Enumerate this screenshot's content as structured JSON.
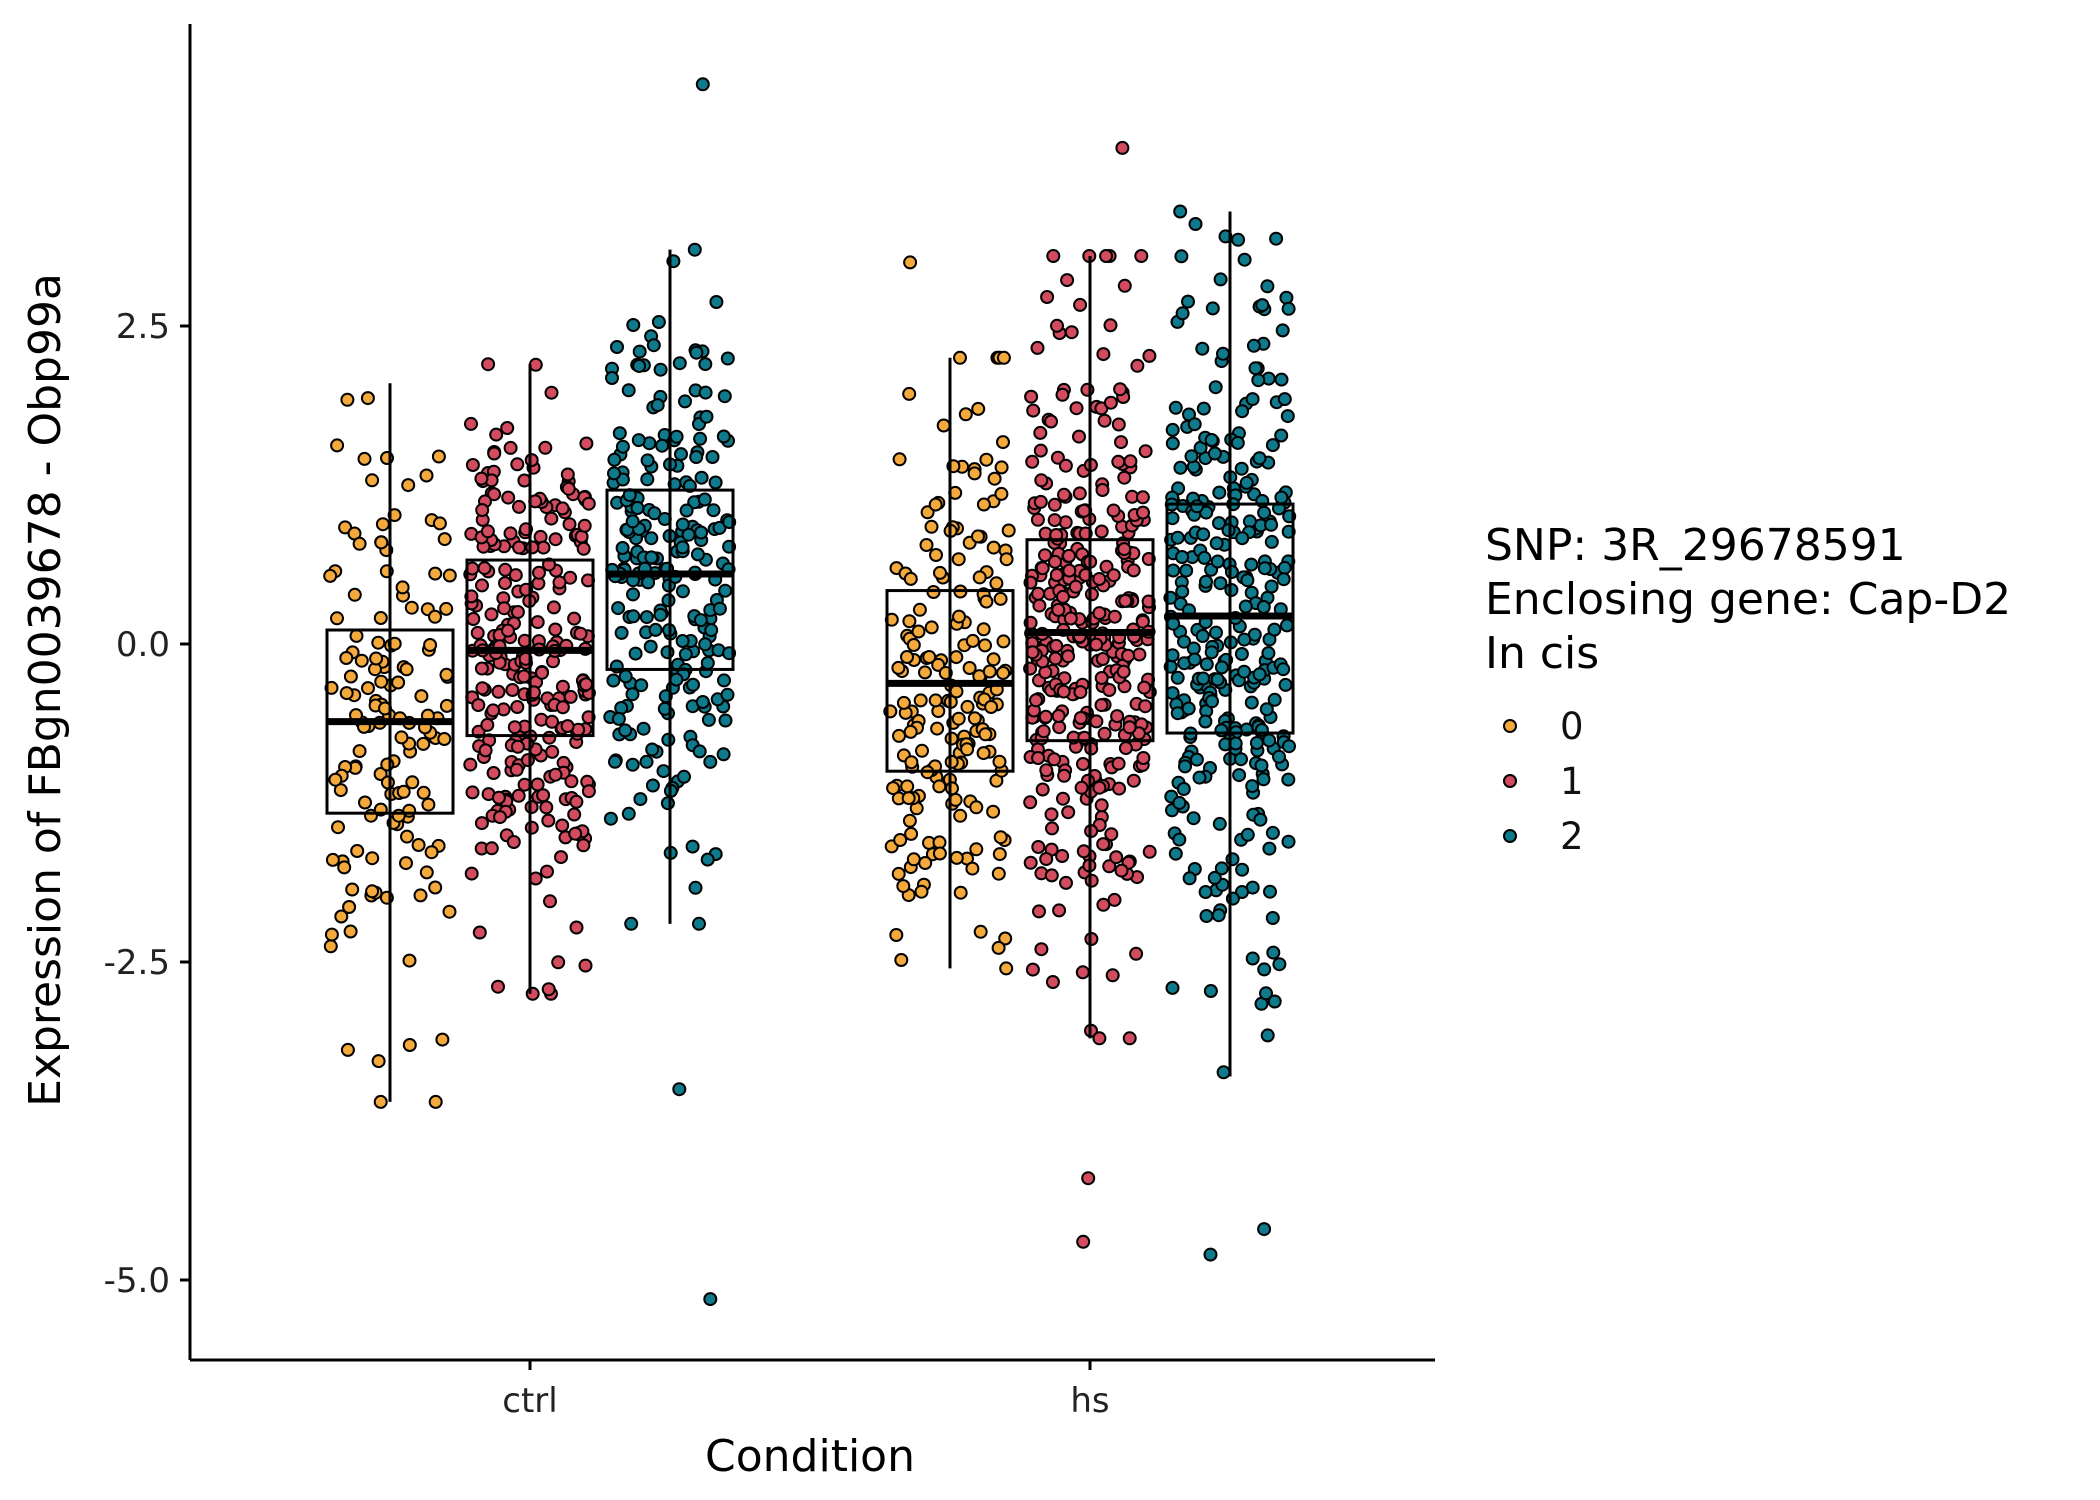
{
  "chart_data": {
    "type": "box",
    "xlabel": "Condition",
    "ylabel": "Expression of FBgn0039678 - Obp99a",
    "categories": [
      "ctrl",
      "hs"
    ],
    "ylim": [
      -5.6,
      4.9
    ],
    "yticks": [
      -5.0,
      -2.5,
      0.0,
      2.5
    ],
    "ytick_labels": [
      "-5.0",
      "-2.5",
      "0.0",
      "2.5"
    ],
    "grid": false,
    "legend": {
      "title_lines": [
        "SNP: 3R_29678591",
        "Enclosing gene: Cap-D2",
        "In cis"
      ],
      "position": "right",
      "entries": [
        {
          "label": "0",
          "color": "#F4A93C"
        },
        {
          "label": "1",
          "color": "#D24B5E"
        },
        {
          "label": "2",
          "color": "#0E7A8C"
        }
      ]
    },
    "boxes": [
      {
        "condition": "ctrl",
        "genotype": "0",
        "n": 140,
        "q1": -1.33,
        "median": -0.61,
        "q3": 0.11,
        "whisker_low": -3.6,
        "whisker_high": 2.05,
        "outliers": []
      },
      {
        "condition": "ctrl",
        "genotype": "1",
        "n": 280,
        "q1": -0.72,
        "median": -0.05,
        "q3": 0.66,
        "whisker_low": -2.75,
        "whisker_high": 2.2,
        "outliers": []
      },
      {
        "condition": "ctrl",
        "genotype": "2",
        "n": 240,
        "q1": -0.2,
        "median": 0.55,
        "q3": 1.21,
        "whisker_low": -2.2,
        "whisker_high": 3.1,
        "outliers": [
          4.4,
          -5.15,
          -3.5
        ]
      },
      {
        "condition": "hs",
        "genotype": "0",
        "n": 190,
        "q1": -1.0,
        "median": -0.31,
        "q3": 0.42,
        "whisker_low": -2.55,
        "whisker_high": 2.25,
        "outliers": [
          3.0
        ]
      },
      {
        "condition": "hs",
        "genotype": "1",
        "n": 360,
        "q1": -0.76,
        "median": 0.09,
        "q3": 0.82,
        "whisker_low": -3.1,
        "whisker_high": 3.05,
        "outliers": [
          3.9,
          -4.2,
          -4.7
        ]
      },
      {
        "condition": "hs",
        "genotype": "2",
        "n": 320,
        "q1": -0.7,
        "median": 0.22,
        "q3": 1.1,
        "whisker_low": -3.4,
        "whisker_high": 3.4,
        "outliers": [
          -4.6,
          -4.8
        ]
      }
    ],
    "point_style": {
      "radius_units": "small",
      "stroke": "#000000",
      "jitter_width": 0.22
    }
  }
}
